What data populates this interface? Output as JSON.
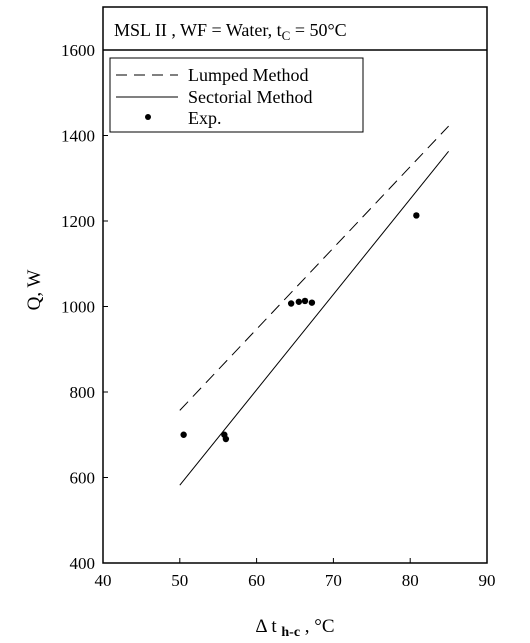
{
  "chart_data": {
    "type": "scatter",
    "header": {
      "prefix": "MSL II , WF = Water, t",
      "subscript": "C",
      "suffix": " = 50°C"
    },
    "xlabel": {
      "prefix": "Δ t ",
      "subscript": "h-c",
      "suffix": " , °C"
    },
    "ylabel": "Q, W",
    "xlim": [
      40,
      90
    ],
    "ylim": [
      400,
      1600
    ],
    "xticks": [
      "40",
      "50",
      "60",
      "70",
      "80",
      "90"
    ],
    "yticks": [
      "400",
      "600",
      "800",
      "1000",
      "1200",
      "1400",
      "1600"
    ],
    "grid": false,
    "legend_position": "top-left",
    "series": [
      {
        "name": "Lumped Method",
        "kind": "line",
        "style": "dashed",
        "x": [
          50,
          85
        ],
        "y": [
          757,
          1422
        ]
      },
      {
        "name": "Sectorial Method",
        "kind": "line",
        "style": "solid",
        "x": [
          50,
          85
        ],
        "y": [
          582,
          1363
        ]
      },
      {
        "name": "Exp.",
        "kind": "scatter",
        "x": [
          50.5,
          55.8,
          56.0,
          64.5,
          65.5,
          66.3,
          67.2,
          80.8
        ],
        "y": [
          700,
          700,
          690,
          1007,
          1011,
          1013,
          1009,
          1213
        ]
      }
    ]
  }
}
